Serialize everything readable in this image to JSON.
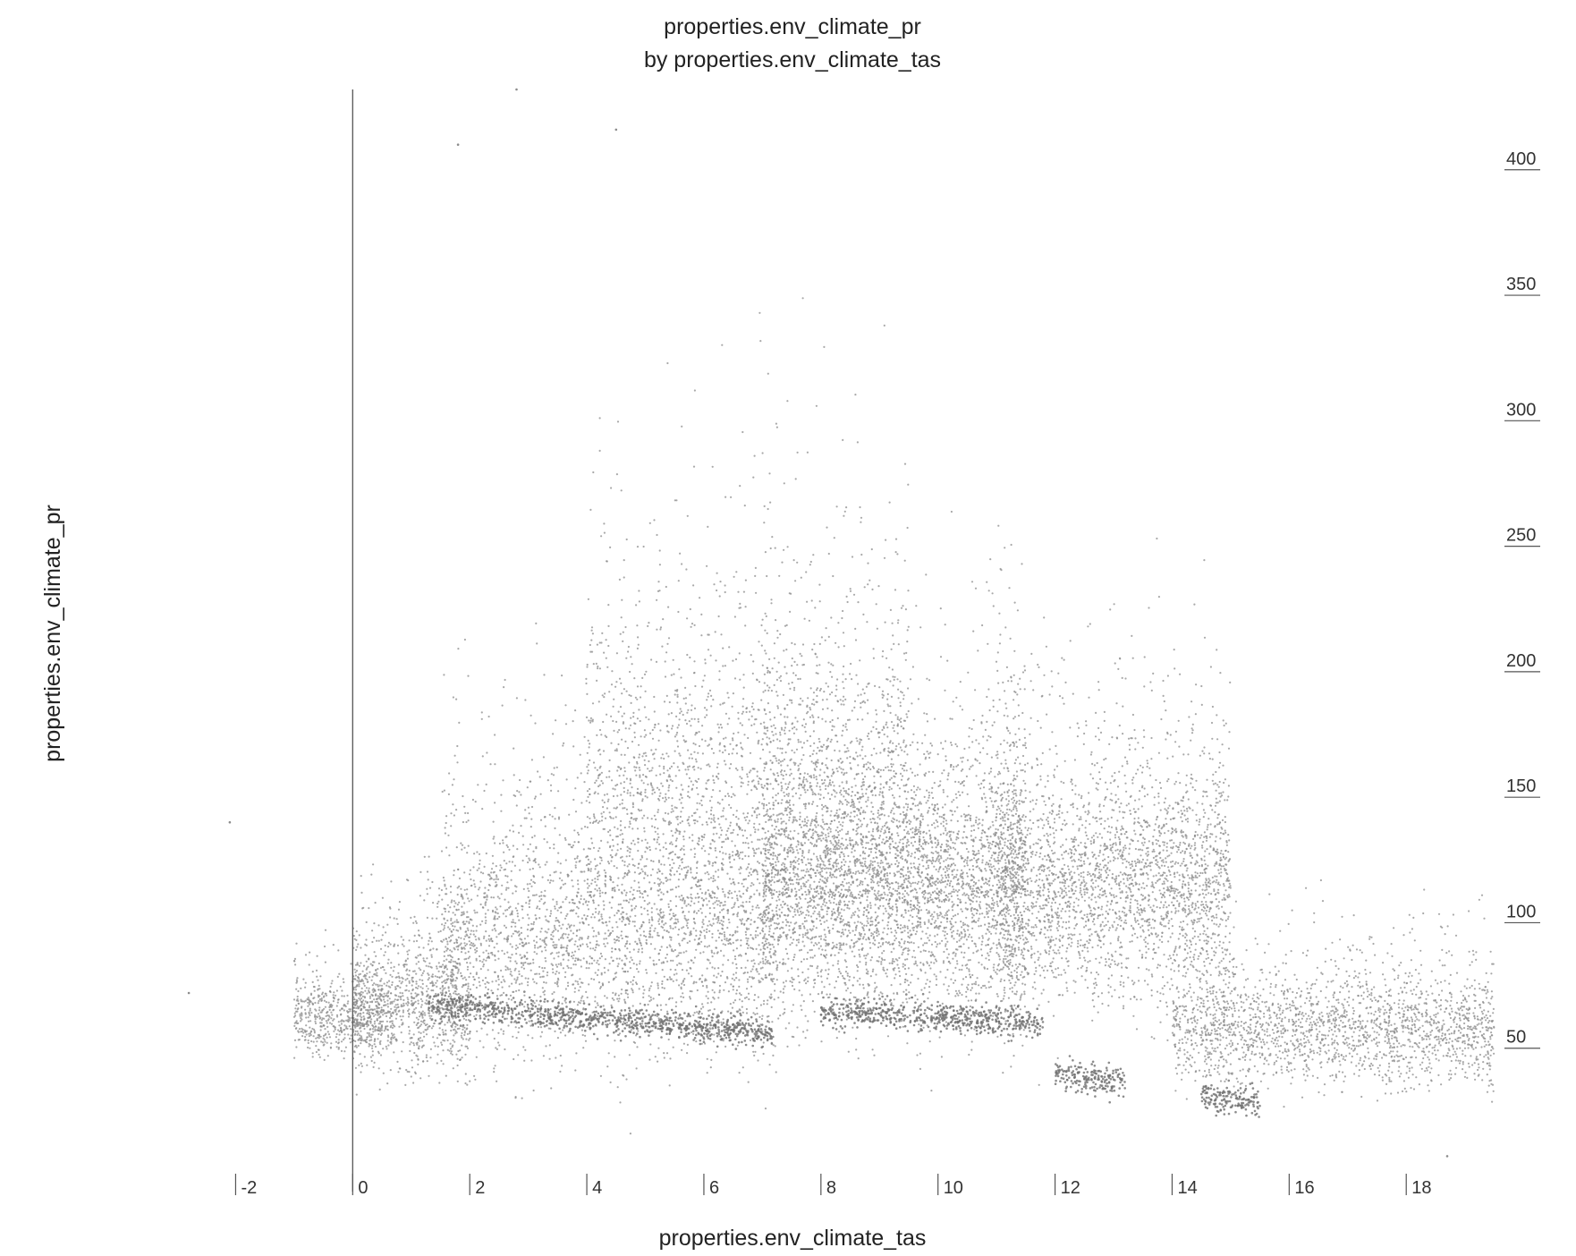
{
  "chart_data": {
    "type": "scatter",
    "title": "properties.env_climate_pr",
    "subtitle": "by properties.env_climate_tas",
    "xlabel": "properties.env_climate_tas",
    "ylabel": "properties.env_climate_pr",
    "xlim": [
      -3.0,
      19.8
    ],
    "ylim": [
      0,
      432
    ],
    "x_ticks": [
      {
        "value": -2,
        "label": "-2"
      },
      {
        "value": 0,
        "label": "0"
      },
      {
        "value": 2,
        "label": "2"
      },
      {
        "value": 4,
        "label": "4"
      },
      {
        "value": 6,
        "label": "6"
      },
      {
        "value": 8,
        "label": "8"
      },
      {
        "value": 10,
        "label": "10"
      },
      {
        "value": 12,
        "label": "12"
      },
      {
        "value": 14,
        "label": "14"
      },
      {
        "value": 16,
        "label": "16"
      },
      {
        "value": 18,
        "label": "18"
      }
    ],
    "y_ticks": [
      {
        "value": 50,
        "label": "50"
      },
      {
        "value": 100,
        "label": "100"
      },
      {
        "value": 150,
        "label": "150"
      },
      {
        "value": 200,
        "label": "200"
      },
      {
        "value": 250,
        "label": "250"
      },
      {
        "value": 300,
        "label": "300"
      },
      {
        "value": 350,
        "label": "350"
      },
      {
        "value": 400,
        "label": "400"
      }
    ],
    "y_axis_position": "right",
    "reference_line_x": 0,
    "grid": false,
    "legend": "none",
    "point_color": "#8c8c8c",
    "density_regions": [
      {
        "x_range": [
          -1.0,
          0.5
        ],
        "y_center": 60,
        "y_spread": 18,
        "weight": 8
      },
      {
        "x_range": [
          0.0,
          2.0
        ],
        "y_center": 65,
        "y_spread": 30,
        "weight": 16
      },
      {
        "x_range": [
          1.5,
          7.2
        ],
        "y_center": 90,
        "y_spread": 55,
        "weight": 40
      },
      {
        "x_range": [
          4.0,
          9.5
        ],
        "y_center": 150,
        "y_spread": 80,
        "weight": 28
      },
      {
        "x_range": [
          7.0,
          11.5
        ],
        "y_center": 110,
        "y_spread": 60,
        "weight": 60
      },
      {
        "x_range": [
          11.0,
          15.0
        ],
        "y_center": 110,
        "y_spread": 55,
        "weight": 40
      },
      {
        "x_range": [
          14.0,
          19.5
        ],
        "y_center": 55,
        "y_spread": 25,
        "weight": 30
      }
    ],
    "dense_bands": [
      {
        "x_range": [
          1.3,
          7.2
        ],
        "y_start": 67,
        "y_end": 56
      },
      {
        "x_range": [
          8.0,
          11.8
        ],
        "y_start": 65,
        "y_end": 60
      },
      {
        "x_range": [
          12.0,
          13.2
        ],
        "y_start": 40,
        "y_end": 36
      },
      {
        "x_range": [
          14.5,
          15.5
        ],
        "y_start": 31,
        "y_end": 28
      }
    ],
    "outliers": [
      {
        "x": 2.8,
        "y": 432
      },
      {
        "x": 4.5,
        "y": 416
      },
      {
        "x": 1.8,
        "y": 410
      },
      {
        "x": -2.8,
        "y": 72
      },
      {
        "x": 18.7,
        "y": 7
      },
      {
        "x": -2.1,
        "y": 140
      }
    ]
  }
}
